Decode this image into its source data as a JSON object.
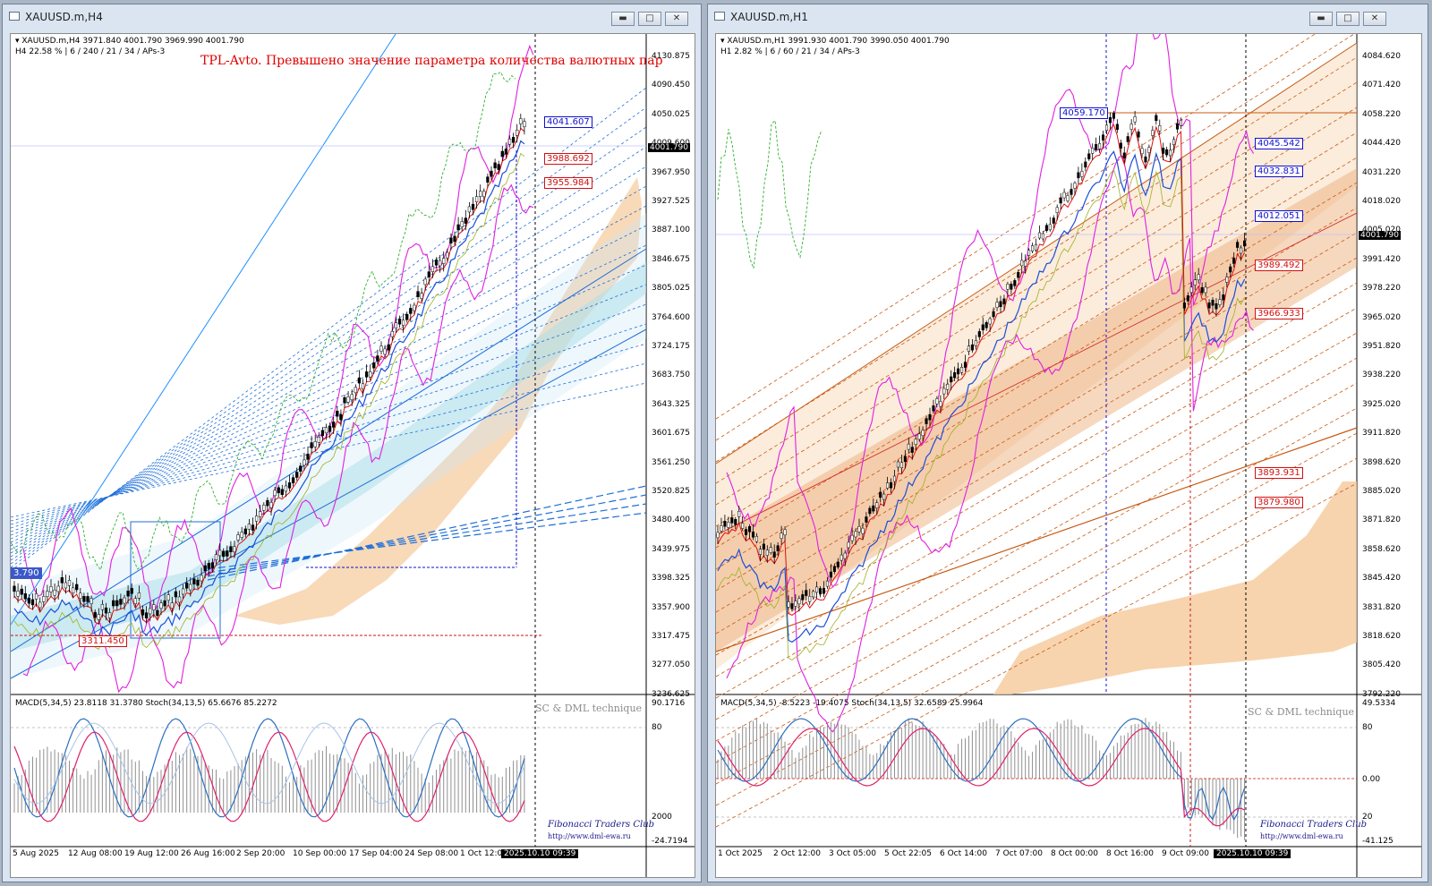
{
  "left_window": {
    "title": "XAUUSD.m,H4",
    "header_symbol": "XAUUSD.m,H4  3971.840 4001.790 3969.990 4001.790",
    "header_info": "H4  22.58 %  |  6 / 240 / 21 / 34 / APs-3",
    "warning": "TPL-Avto. Превышено значение параметра количества валютных пар",
    "price_axis": [
      "4130.875",
      "4090.450",
      "4050.025",
      "4009.600",
      "3967.950",
      "3927.525",
      "3887.100",
      "3846.675",
      "3805.025",
      "3764.600",
      "3724.175",
      "3683.750",
      "3643.325",
      "3601.675",
      "3561.250",
      "3520.825",
      "3480.400",
      "3439.975",
      "3398.325",
      "3357.900",
      "3317.475",
      "3277.050",
      "3236.625"
    ],
    "current_price": "4001.790",
    "price_boxes": [
      {
        "text": "4041.607",
        "style": "blue"
      },
      {
        "text": "3988.692",
        "style": "red"
      },
      {
        "text": "3955.984",
        "style": "red"
      },
      {
        "text": "3311.450",
        "style": "red"
      },
      {
        "text": "3.790",
        "style": "bluefill"
      }
    ],
    "indicator_header": "MACD(5,34,5) 23.8118 31.3780   Stoch(34,13,5) 65.6676 85.2272",
    "indicator_axis": [
      "90.1716",
      "80",
      "2000",
      "-24.7194"
    ],
    "brand": "SC & DML  technique",
    "club": "Fibonacci Traders Club",
    "url": "http://www.dml-ewa.ru",
    "dates": [
      "5 Aug 2025",
      "12 Aug 08:00",
      "19 Aug 12:00",
      "26 Aug 16:00",
      "2 Sep 20:00",
      "10 Sep 00:00",
      "17 Sep 04:00",
      "24 Sep 08:00",
      "1 Oct 12:00"
    ],
    "date_cursor": "2025.10.10 09:39"
  },
  "right_window": {
    "title": "XAUUSD.m,H1",
    "header_symbol": "XAUUSD.m,H1  3991.930 4001.790 3990.050 4001.790",
    "header_info": "H1  2.82 %  |  6 / 60 / 21 / 34 / APs-3",
    "price_axis": [
      "4084.620",
      "4071.420",
      "4058.220",
      "4044.420",
      "4031.220",
      "4018.020",
      "4005.020",
      "3991.420",
      "3978.220",
      "3965.020",
      "3951.820",
      "3938.220",
      "3925.020",
      "3911.820",
      "3898.620",
      "3885.020",
      "3871.820",
      "3858.620",
      "3845.420",
      "3831.820",
      "3818.620",
      "3805.420",
      "3792.220"
    ],
    "current_price": "4001.790",
    "price_boxes": [
      {
        "text": "4059.170",
        "style": "blue"
      },
      {
        "text": "4045.542",
        "style": "blue"
      },
      {
        "text": "4032.831",
        "style": "blue"
      },
      {
        "text": "4012.051",
        "style": "blue"
      },
      {
        "text": "3989.492",
        "style": "red"
      },
      {
        "text": "3966.933",
        "style": "red"
      },
      {
        "text": "3893.931",
        "style": "red"
      },
      {
        "text": "3879.980",
        "style": "red"
      }
    ],
    "indicator_header": "MACD(5,34,5) -8.5223 -19.4075   Stoch(34,13,5) 32.6589 25.9964",
    "indicator_axis": [
      "49.5334",
      "80",
      "0.00",
      "20",
      "-41.125"
    ],
    "brand": "SC & DML  technique",
    "club": "Fibonacci Traders Club",
    "url": "http://www.dml-ewa.ru",
    "dates": [
      "1 Oct 2025",
      "2 Oct 12:00",
      "3 Oct 05:00",
      "5 Oct 22:05",
      "6 Oct 14:00",
      "7 Oct 07:00",
      "8 Oct 00:00",
      "8 Oct 16:00",
      "9 Oct 09:00"
    ],
    "date_cursor": "2025.10.10 09:39"
  },
  "colors": {
    "candle": "#000000",
    "magenta": "#e020e0",
    "blue_line": "#1a4fd8",
    "cloud": "#f5c99a",
    "teal_band": "#9fdde0",
    "red_line": "#e01010",
    "macd_hist": "#909090"
  },
  "icons": [
    "window-icon",
    "minimize-icon",
    "maximize-icon",
    "close-icon"
  ]
}
